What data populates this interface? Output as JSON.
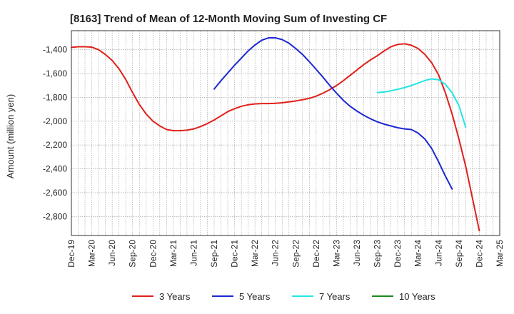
{
  "chart_data": {
    "type": "line",
    "title": "[8163]  Trend of Mean of 12-Month Moving Sum of Investing CF",
    "ylabel": "Amount (million yen)",
    "xlabel": "",
    "ylim": [
      -2960,
      -1240
    ],
    "y_ticks": [
      -1400,
      -1600,
      -1800,
      -2000,
      -2200,
      -2400,
      -2600,
      -2800
    ],
    "y_tick_labels": [
      "-1,400",
      "-1,600",
      "-1,800",
      "-2,000",
      "-2,200",
      "-2,400",
      "-2,600",
      "-2,800"
    ],
    "x_ticks": [
      "Dec-19",
      "Mar-20",
      "Jun-20",
      "Sep-20",
      "Dec-20",
      "Mar-21",
      "Jun-21",
      "Sep-21",
      "Dec-21",
      "Mar-22",
      "Jun-22",
      "Sep-22",
      "Dec-22",
      "Mar-23",
      "Jun-23",
      "Sep-23",
      "Dec-23",
      "Mar-24",
      "Jun-24",
      "Sep-24",
      "Dec-24",
      "Mar-25"
    ],
    "grid": true,
    "legend_position": "bottom",
    "series": [
      {
        "name": "3 Years",
        "color": "#e0201b",
        "x_start": "Dec-19",
        "values": [
          -1380,
          -1375,
          -1375,
          -1378,
          -1400,
          -1440,
          -1490,
          -1560,
          -1650,
          -1760,
          -1860,
          -1940,
          -2000,
          -2040,
          -2070,
          -2080,
          -2080,
          -2075,
          -2065,
          -2045,
          -2020,
          -1990,
          -1955,
          -1920,
          -1895,
          -1875,
          -1862,
          -1855,
          -1852,
          -1852,
          -1850,
          -1845,
          -1838,
          -1830,
          -1820,
          -1808,
          -1790,
          -1765,
          -1735,
          -1700,
          -1660,
          -1615,
          -1570,
          -1525,
          -1485,
          -1450,
          -1410,
          -1375,
          -1355,
          -1350,
          -1362,
          -1390,
          -1440,
          -1510,
          -1610,
          -1760,
          -1940,
          -2150,
          -2380,
          -2650,
          -2920
        ]
      },
      {
        "name": "5 Years",
        "color": "#1b27d1",
        "x_start": "Sep-21",
        "values": [
          -1730,
          -1660,
          -1595,
          -1530,
          -1470,
          -1410,
          -1360,
          -1320,
          -1300,
          -1300,
          -1315,
          -1345,
          -1390,
          -1440,
          -1500,
          -1565,
          -1630,
          -1700,
          -1765,
          -1825,
          -1875,
          -1915,
          -1950,
          -1980,
          -2005,
          -2025,
          -2040,
          -2055,
          -2065,
          -2070,
          -2100,
          -2150,
          -2230,
          -2340,
          -2460,
          -2570
        ]
      },
      {
        "name": "7 Years",
        "color": "#22e6e6",
        "x_start": "Sep-23",
        "values": [
          -1760,
          -1755,
          -1745,
          -1732,
          -1718,
          -1700,
          -1680,
          -1658,
          -1645,
          -1652,
          -1690,
          -1760,
          -1870,
          -2050
        ]
      },
      {
        "name": "10 Years",
        "color": "#1a8a1a",
        "x_start": "Sep-24",
        "values": []
      }
    ]
  }
}
